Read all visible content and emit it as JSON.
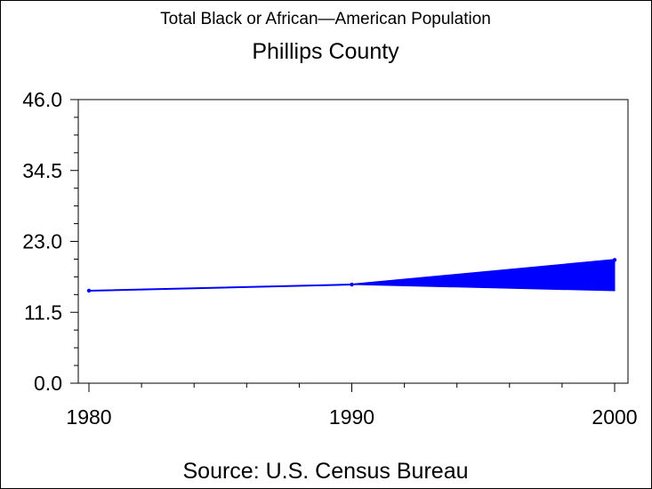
{
  "title": "Total Black or African—American Population",
  "subtitle": "Phillips County",
  "footnote": "Source: U.S. Census Bureau",
  "chart_data": {
    "type": "line",
    "x": [
      1980,
      1990,
      2000
    ],
    "series": [
      {
        "values": [
          15.0,
          16.0,
          20.0
        ]
      }
    ],
    "band": {
      "x": [
        1990,
        2000
      ],
      "upper": [
        16.0,
        20.0
      ],
      "lower": [
        16.0,
        15.0
      ]
    },
    "xlim": [
      1980,
      2000
    ],
    "ylim": [
      0,
      46
    ],
    "y_ticks": [
      "0.0",
      "11.5",
      "23.0",
      "34.5",
      "46.0"
    ],
    "x_ticks": [
      "1980",
      "1990",
      "2000"
    ],
    "grid": false,
    "color": "#0000ff"
  }
}
